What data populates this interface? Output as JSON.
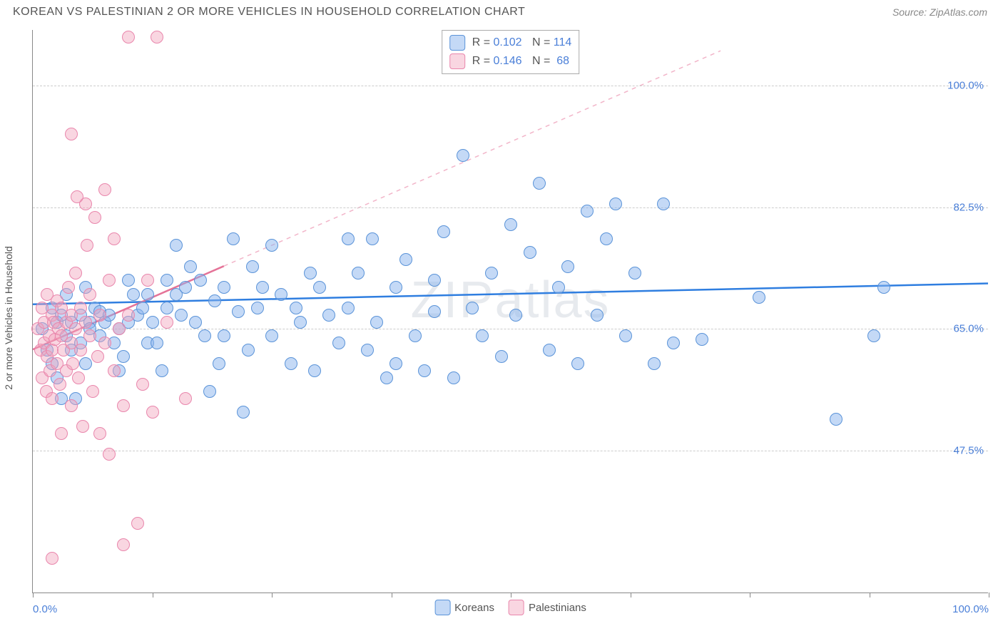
{
  "title": "KOREAN VS PALESTINIAN 2 OR MORE VEHICLES IN HOUSEHOLD CORRELATION CHART",
  "source": "Source: ZipAtlas.com",
  "watermark": "ZIPatlas",
  "ylabel": "2 or more Vehicles in Household",
  "chart": {
    "type": "scatter",
    "xlim": [
      0,
      100
    ],
    "ylim": [
      27,
      108
    ],
    "yticks": [
      47.5,
      65.0,
      82.5,
      100.0
    ],
    "ytick_labels": [
      "47.5%",
      "65.0%",
      "82.5%",
      "100.0%"
    ],
    "xticks": [
      0,
      12.5,
      25,
      37.5,
      50,
      62.5,
      75,
      87.5,
      100
    ],
    "xtick_labels_shown": {
      "0": "0.0%",
      "100": "100.0%"
    },
    "background_color": "#ffffff",
    "grid_color": "#cccccc",
    "axis_color": "#888888",
    "point_radius": 9,
    "series": [
      {
        "name": "Koreans",
        "color_fill": "rgba(137,179,237,0.5)",
        "color_stroke": "#5a93d8",
        "R": "0.102",
        "N": "114",
        "trend": {
          "x1": 0,
          "y1": 68.5,
          "x2": 100,
          "y2": 71.5,
          "color": "#2f7ee0",
          "width": 2.5,
          "dash": "none"
        },
        "points": [
          [
            1,
            65
          ],
          [
            1.5,
            62
          ],
          [
            2,
            68
          ],
          [
            2,
            60
          ],
          [
            2.5,
            66
          ],
          [
            2.5,
            58
          ],
          [
            3,
            67
          ],
          [
            3,
            55
          ],
          [
            3.5,
            64
          ],
          [
            3.5,
            70
          ],
          [
            4,
            62
          ],
          [
            4,
            66
          ],
          [
            4.5,
            55
          ],
          [
            5,
            67
          ],
          [
            5,
            63
          ],
          [
            5.5,
            71
          ],
          [
            5.5,
            60
          ],
          [
            6,
            66
          ],
          [
            6,
            65
          ],
          [
            6.5,
            68
          ],
          [
            7,
            67.5
          ],
          [
            7,
            64
          ],
          [
            7.5,
            66
          ],
          [
            8,
            67
          ],
          [
            8.5,
            63
          ],
          [
            9,
            59
          ],
          [
            9,
            65
          ],
          [
            9.5,
            61
          ],
          [
            10,
            66
          ],
          [
            10,
            72
          ],
          [
            10.5,
            70
          ],
          [
            11,
            67
          ],
          [
            11.5,
            68
          ],
          [
            12,
            63
          ],
          [
            12,
            70
          ],
          [
            12.5,
            66
          ],
          [
            13,
            63
          ],
          [
            13.5,
            59
          ],
          [
            14,
            72
          ],
          [
            14,
            68
          ],
          [
            15,
            70
          ],
          [
            15,
            77
          ],
          [
            15.5,
            67
          ],
          [
            16,
            71
          ],
          [
            16.5,
            74
          ],
          [
            17,
            66
          ],
          [
            17.5,
            72
          ],
          [
            18,
            64
          ],
          [
            18.5,
            56
          ],
          [
            19,
            69
          ],
          [
            19.5,
            60
          ],
          [
            20,
            71
          ],
          [
            20,
            64
          ],
          [
            21,
            78
          ],
          [
            21.5,
            67.5
          ],
          [
            22,
            53
          ],
          [
            22.5,
            62
          ],
          [
            23,
            74
          ],
          [
            23.5,
            68
          ],
          [
            24,
            71
          ],
          [
            25,
            77
          ],
          [
            25,
            64
          ],
          [
            26,
            70
          ],
          [
            27,
            60
          ],
          [
            27.5,
            68
          ],
          [
            28,
            66
          ],
          [
            29,
            73
          ],
          [
            29.5,
            59
          ],
          [
            30,
            71
          ],
          [
            31,
            67
          ],
          [
            32,
            63
          ],
          [
            33,
            78
          ],
          [
            33,
            68
          ],
          [
            34,
            73
          ],
          [
            35,
            62
          ],
          [
            35.5,
            78
          ],
          [
            36,
            66
          ],
          [
            37,
            58
          ],
          [
            38,
            71
          ],
          [
            38,
            60
          ],
          [
            39,
            75
          ],
          [
            40,
            64
          ],
          [
            41,
            59
          ],
          [
            42,
            72
          ],
          [
            42,
            67.5
          ],
          [
            43,
            79
          ],
          [
            44,
            58
          ],
          [
            45,
            90
          ],
          [
            46,
            68
          ],
          [
            47,
            64
          ],
          [
            48,
            73
          ],
          [
            49,
            61
          ],
          [
            50,
            80
          ],
          [
            50.5,
            67
          ],
          [
            52,
            76
          ],
          [
            53,
            86
          ],
          [
            54,
            62
          ],
          [
            55,
            71
          ],
          [
            56,
            74
          ],
          [
            57,
            60
          ],
          [
            58,
            82
          ],
          [
            59,
            67
          ],
          [
            60,
            78
          ],
          [
            61,
            83
          ],
          [
            62,
            64
          ],
          [
            63,
            73
          ],
          [
            65,
            60
          ],
          [
            66,
            83
          ],
          [
            67,
            63
          ],
          [
            70,
            63.5
          ],
          [
            76,
            69.5
          ],
          [
            84,
            52
          ],
          [
            88,
            64
          ],
          [
            89,
            71
          ]
        ]
      },
      {
        "name": "Palestinians",
        "color_fill": "rgba(242,163,188,0.45)",
        "color_stroke": "#e986ac",
        "R": "0.146",
        "N": "68",
        "trend_solid": {
          "x1": 0,
          "y1": 62,
          "x2": 20,
          "y2": 74,
          "color": "#e57398",
          "width": 2.5
        },
        "trend_dash": {
          "x1": 20,
          "y1": 74,
          "x2": 72,
          "y2": 105,
          "color": "#f2b5c9",
          "width": 1.5
        },
        "points": [
          [
            0.5,
            65
          ],
          [
            0.8,
            62
          ],
          [
            1,
            68
          ],
          [
            1,
            58
          ],
          [
            1.2,
            66
          ],
          [
            1.2,
            63
          ],
          [
            1.4,
            56
          ],
          [
            1.5,
            61
          ],
          [
            1.5,
            70
          ],
          [
            1.7,
            64
          ],
          [
            1.8,
            59
          ],
          [
            2,
            67
          ],
          [
            2,
            62
          ],
          [
            2,
            55
          ],
          [
            2.2,
            66
          ],
          [
            2.3,
            63.5
          ],
          [
            2.5,
            69
          ],
          [
            2.5,
            60
          ],
          [
            2.7,
            65
          ],
          [
            2.8,
            57
          ],
          [
            3,
            64
          ],
          [
            3,
            68
          ],
          [
            3,
            50
          ],
          [
            3.2,
            62
          ],
          [
            3.5,
            66
          ],
          [
            3.5,
            59
          ],
          [
            3.7,
            71
          ],
          [
            4,
            63
          ],
          [
            4,
            67
          ],
          [
            4,
            54
          ],
          [
            4.2,
            60
          ],
          [
            4.5,
            73
          ],
          [
            4.5,
            65
          ],
          [
            4.8,
            58
          ],
          [
            5,
            68
          ],
          [
            5,
            62
          ],
          [
            5.2,
            51
          ],
          [
            5.5,
            66
          ],
          [
            5.5,
            83
          ],
          [
            5.7,
            77
          ],
          [
            6,
            64
          ],
          [
            6,
            70
          ],
          [
            6.3,
            56
          ],
          [
            6.5,
            81
          ],
          [
            6.8,
            61
          ],
          [
            7,
            50
          ],
          [
            7,
            67
          ],
          [
            7.5,
            85
          ],
          [
            7.5,
            63
          ],
          [
            8,
            47
          ],
          [
            8,
            72
          ],
          [
            8.5,
            59
          ],
          [
            8.5,
            78
          ],
          [
            9,
            65
          ],
          [
            9.5,
            34
          ],
          [
            9.5,
            54
          ],
          [
            10,
            107
          ],
          [
            10,
            67
          ],
          [
            11,
            37
          ],
          [
            11.5,
            57
          ],
          [
            12,
            72
          ],
          [
            12.5,
            53
          ],
          [
            13,
            107
          ],
          [
            14,
            66
          ],
          [
            16,
            55
          ],
          [
            4,
            93
          ],
          [
            4.6,
            84
          ],
          [
            2,
            32
          ]
        ]
      }
    ],
    "legend_bottom": [
      {
        "label": "Koreans",
        "swatch": "blue"
      },
      {
        "label": "Palestinians",
        "swatch": "pink"
      }
    ]
  }
}
